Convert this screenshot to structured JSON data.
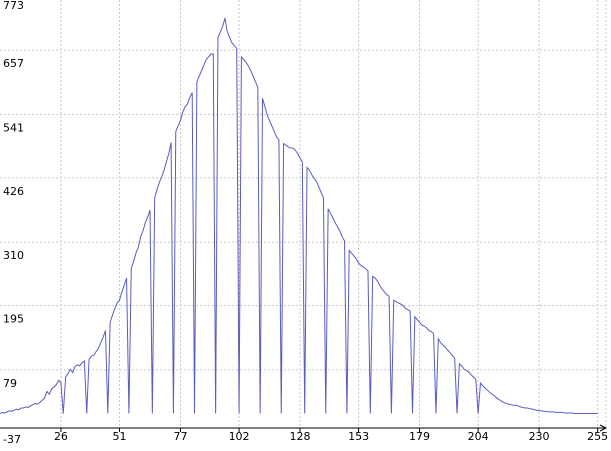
{
  "chart_data": {
    "type": "line",
    "color": "#5a5cc0",
    "grid": true,
    "xlim": [
      0,
      256
    ],
    "ylim": [
      -37,
      773
    ],
    "xticks": [
      26,
      51,
      77,
      102,
      128,
      153,
      179,
      204,
      230,
      255
    ],
    "yticks": [
      -37,
      79,
      195,
      310,
      426,
      541,
      657,
      773
    ],
    "x": [
      0,
      1,
      2,
      3,
      4,
      5,
      6,
      7,
      8,
      9,
      10,
      11,
      12,
      13,
      14,
      15,
      16,
      17,
      18,
      19,
      20,
      21,
      22,
      23,
      24,
      25,
      26,
      27,
      28,
      29,
      30,
      31,
      32,
      33,
      34,
      35,
      36,
      37,
      38,
      39,
      40,
      41,
      42,
      43,
      44,
      45,
      46,
      47,
      48,
      49,
      50,
      51,
      52,
      53,
      54,
      55,
      56,
      57,
      58,
      59,
      60,
      61,
      62,
      63,
      64,
      65,
      66,
      67,
      68,
      69,
      70,
      71,
      72,
      73,
      74,
      75,
      76,
      77,
      78,
      79,
      80,
      81,
      82,
      83,
      84,
      85,
      86,
      87,
      88,
      89,
      90,
      91,
      92,
      93,
      94,
      95,
      96,
      97,
      98,
      99,
      100,
      101,
      102,
      103,
      104,
      105,
      106,
      107,
      108,
      109,
      110,
      111,
      112,
      113,
      114,
      115,
      116,
      117,
      118,
      119,
      120,
      121,
      122,
      123,
      124,
      125,
      126,
      127,
      128,
      129,
      130,
      131,
      132,
      133,
      134,
      135,
      136,
      137,
      138,
      139,
      140,
      141,
      142,
      143,
      144,
      145,
      146,
      147,
      148,
      149,
      150,
      151,
      152,
      153,
      154,
      155,
      156,
      157,
      158,
      159,
      160,
      161,
      162,
      163,
      164,
      165,
      166,
      167,
      168,
      169,
      170,
      171,
      172,
      173,
      174,
      175,
      176,
      177,
      178,
      179,
      180,
      181,
      182,
      183,
      184,
      185,
      186,
      187,
      188,
      189,
      190,
      191,
      192,
      193,
      194,
      195,
      196,
      197,
      198,
      199,
      200,
      201,
      202,
      203,
      204,
      205,
      206,
      207,
      208,
      209,
      210,
      211,
      212,
      213,
      214,
      215,
      216,
      217,
      218,
      219,
      220,
      221,
      222,
      223,
      224,
      225,
      226,
      227,
      228,
      229,
      230,
      231,
      232,
      233,
      234,
      235,
      236,
      237,
      238,
      239,
      240,
      241,
      242,
      243,
      244,
      245,
      246,
      247,
      248,
      249,
      250,
      251,
      252,
      253,
      254,
      255
    ],
    "values": [
      0,
      2,
      1,
      3,
      5,
      4,
      6,
      8,
      7,
      10,
      10,
      12,
      11,
      14,
      16,
      18,
      17,
      20,
      24,
      28,
      40,
      35,
      44,
      48,
      52,
      60,
      56,
      0,
      66,
      72,
      80,
      74,
      85,
      88,
      86,
      92,
      95,
      0,
      98,
      104,
      105,
      112,
      118,
      128,
      138,
      150,
      0,
      165,
      178,
      190,
      200,
      205,
      220,
      232,
      245,
      0,
      262,
      275,
      290,
      300,
      320,
      330,
      345,
      355,
      368,
      0,
      390,
      405,
      418,
      428,
      440,
      455,
      470,
      490,
      0,
      510,
      520,
      530,
      545,
      555,
      560,
      572,
      580,
      0,
      600,
      610,
      620,
      630,
      640,
      645,
      650,
      650,
      0,
      680,
      690,
      700,
      715,
      690,
      680,
      670,
      665,
      660,
      0,
      645,
      640,
      635,
      628,
      620,
      610,
      600,
      590,
      0,
      570,
      555,
      540,
      530,
      520,
      510,
      500,
      495,
      0,
      488,
      485,
      482,
      480,
      480,
      476,
      470,
      462,
      455,
      0,
      445,
      440,
      432,
      425,
      420,
      410,
      400,
      390,
      0,
      370,
      362,
      354,
      345,
      338,
      330,
      320,
      312,
      0,
      295,
      290,
      285,
      280,
      272,
      268,
      265,
      262,
      258,
      0,
      248,
      245,
      240,
      232,
      225,
      220,
      215,
      212,
      0,
      205,
      202,
      200,
      198,
      195,
      190,
      188,
      185,
      0,
      175,
      170,
      165,
      160,
      158,
      155,
      150,
      148,
      145,
      0,
      135,
      128,
      124,
      120,
      115,
      110,
      105,
      100,
      0,
      90,
      86,
      80,
      78,
      75,
      70,
      66,
      62,
      0,
      55,
      50,
      46,
      42,
      38,
      35,
      32,
      28,
      25,
      22,
      20,
      18,
      17,
      16,
      15,
      15,
      14,
      12,
      11,
      10,
      10,
      9,
      8,
      7,
      6,
      5,
      5,
      4,
      4,
      3,
      3,
      3,
      2,
      2,
      2,
      2,
      1,
      1,
      1,
      1,
      0,
      0,
      0,
      0,
      0,
      0,
      0,
      0,
      0,
      0,
      0
    ]
  }
}
